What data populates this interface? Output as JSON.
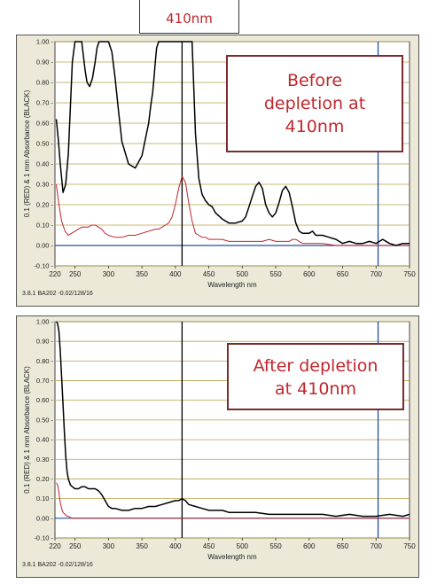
{
  "header_label": "410nm",
  "chart_data": [
    {
      "type": "line",
      "callout_lines": [
        "Before",
        "depletion at",
        "410nm"
      ],
      "ylabel": "0.1 (RED) & 1 mm Absorbance (BLACK)",
      "xlabel": "Wavelength nm",
      "footer": "3.8.1 BA202 -0.02/128/16",
      "xlim": [
        220,
        750
      ],
      "ylim": [
        -0.1,
        1.0
      ],
      "x_ticks": [
        220,
        250,
        300,
        350,
        400,
        450,
        500,
        550,
        600,
        650,
        700,
        750
      ],
      "y_ticks": [
        -0.1,
        0.0,
        0.1,
        0.2,
        0.3,
        0.4,
        0.5,
        0.6,
        0.7,
        0.8,
        0.9,
        1.0
      ],
      "y_tick_labels": [
        "-0.10 -",
        "0.00 -",
        "0.10 -",
        "0.20 -",
        "0.30 -",
        "0.40 -",
        "0.50 -",
        "0.60 -",
        "0.70 -",
        "0.80 -",
        "0.90 -",
        "1.00 -"
      ],
      "vertical_markers": [
        {
          "x": 410,
          "color": "#000000"
        },
        {
          "x": 703,
          "color": "#1f4fa0"
        }
      ],
      "grid": true,
      "series": [
        {
          "color": "#000000",
          "x": [
            222,
            225,
            228,
            232,
            236,
            240,
            243,
            246,
            250,
            255,
            260,
            265,
            268,
            272,
            276,
            280,
            283,
            286,
            290,
            295,
            300,
            305,
            310,
            315,
            320,
            330,
            340,
            350,
            355,
            360,
            363,
            366,
            368,
            370,
            372,
            375,
            380,
            385,
            390,
            395,
            400,
            405,
            410,
            415,
            420,
            425,
            430,
            435,
            440,
            445,
            450,
            455,
            460,
            470,
            480,
            490,
            500,
            505,
            510,
            515,
            520,
            525,
            530,
            535,
            540,
            545,
            550,
            555,
            560,
            565,
            570,
            575,
            580,
            585,
            590,
            595,
            600,
            605,
            610,
            620,
            630,
            640,
            650,
            660,
            670,
            680,
            690,
            700,
            710,
            720,
            730,
            740,
            750
          ],
          "y": [
            0.62,
            0.52,
            0.4,
            0.26,
            0.3,
            0.45,
            0.68,
            0.9,
            1.0,
            1.0,
            1.0,
            0.86,
            0.8,
            0.78,
            0.82,
            0.9,
            0.97,
            1.0,
            1.0,
            1.0,
            1.0,
            0.95,
            0.82,
            0.66,
            0.51,
            0.4,
            0.38,
            0.44,
            0.52,
            0.6,
            0.68,
            0.75,
            0.82,
            0.9,
            0.97,
            1.0,
            1.0,
            1.0,
            1.0,
            1.0,
            1.0,
            1.0,
            1.0,
            1.0,
            1.0,
            1.0,
            0.55,
            0.33,
            0.25,
            0.22,
            0.2,
            0.19,
            0.16,
            0.13,
            0.11,
            0.11,
            0.12,
            0.14,
            0.19,
            0.24,
            0.29,
            0.31,
            0.28,
            0.2,
            0.16,
            0.14,
            0.16,
            0.21,
            0.27,
            0.29,
            0.26,
            0.19,
            0.11,
            0.07,
            0.06,
            0.06,
            0.06,
            0.07,
            0.05,
            0.05,
            0.04,
            0.03,
            0.01,
            0.02,
            0.01,
            0.01,
            0.02,
            0.01,
            0.03,
            0.01,
            0.0,
            0.01,
            0.01
          ]
        },
        {
          "color": "#c0262c",
          "x": [
            222,
            226,
            230,
            235,
            240,
            245,
            250,
            255,
            260,
            265,
            270,
            275,
            280,
            285,
            290,
            295,
            300,
            310,
            320,
            330,
            340,
            350,
            360,
            370,
            375,
            380,
            385,
            390,
            395,
            400,
            405,
            410,
            415,
            420,
            425,
            430,
            435,
            440,
            445,
            450,
            460,
            470,
            480,
            490,
            500,
            510,
            520,
            530,
            540,
            550,
            560,
            570,
            575,
            580,
            585,
            590,
            600,
            620,
            640,
            660,
            680,
            700,
            720,
            740,
            750
          ],
          "y": [
            0.3,
            0.2,
            0.12,
            0.07,
            0.05,
            0.06,
            0.07,
            0.08,
            0.09,
            0.09,
            0.09,
            0.1,
            0.1,
            0.09,
            0.08,
            0.06,
            0.05,
            0.04,
            0.04,
            0.05,
            0.05,
            0.06,
            0.07,
            0.08,
            0.08,
            0.09,
            0.1,
            0.11,
            0.14,
            0.2,
            0.28,
            0.34,
            0.31,
            0.21,
            0.12,
            0.06,
            0.05,
            0.04,
            0.04,
            0.03,
            0.03,
            0.03,
            0.02,
            0.02,
            0.02,
            0.02,
            0.02,
            0.02,
            0.03,
            0.02,
            0.02,
            0.02,
            0.03,
            0.03,
            0.02,
            0.01,
            0.01,
            0.01,
            0.0,
            0.0,
            0.0,
            0.0,
            0.0,
            0.0,
            0.0
          ]
        }
      ]
    },
    {
      "type": "line",
      "callout_lines": [
        "After depletion",
        "at 410nm"
      ],
      "ylabel": "0.1 (RED) & 1 mm Absorbance (BLACK)",
      "xlabel": "Wavelength nm",
      "footer": "3.8.1 BA202 -0.02/128/16",
      "xlim": [
        220,
        750
      ],
      "ylim": [
        -0.1,
        1.0
      ],
      "x_ticks": [
        220,
        250,
        300,
        350,
        400,
        450,
        500,
        550,
        600,
        650,
        700,
        750
      ],
      "y_ticks": [
        -0.1,
        0.0,
        0.1,
        0.2,
        0.3,
        0.4,
        0.5,
        0.6,
        0.7,
        0.8,
        0.9,
        1.0
      ],
      "y_tick_labels": [
        "-0.10 -",
        "0.00 -",
        "0.10 -",
        "0.20 -",
        "0.30 -",
        "0.40 -",
        "0.50 -",
        "0.60 -",
        "0.70 -",
        "0.80 -",
        "0.90 -",
        "1.00 -"
      ],
      "vertical_markers": [
        {
          "x": 410,
          "color": "#000000"
        },
        {
          "x": 703,
          "color": "#1f4fa0"
        }
      ],
      "grid": true,
      "series": [
        {
          "color": "#000000",
          "x": [
            222,
            224,
            226,
            228,
            230,
            232,
            234,
            236,
            238,
            240,
            243,
            246,
            250,
            255,
            260,
            265,
            270,
            275,
            280,
            285,
            290,
            295,
            300,
            305,
            310,
            320,
            330,
            340,
            350,
            360,
            370,
            380,
            390,
            400,
            405,
            410,
            415,
            420,
            430,
            440,
            450,
            460,
            470,
            480,
            490,
            500,
            520,
            540,
            560,
            580,
            600,
            620,
            640,
            660,
            680,
            700,
            720,
            740,
            750
          ],
          "y": [
            1.0,
            0.99,
            0.95,
            0.85,
            0.72,
            0.58,
            0.44,
            0.32,
            0.24,
            0.2,
            0.17,
            0.16,
            0.15,
            0.15,
            0.16,
            0.16,
            0.15,
            0.15,
            0.15,
            0.14,
            0.12,
            0.09,
            0.06,
            0.05,
            0.05,
            0.04,
            0.04,
            0.05,
            0.05,
            0.06,
            0.06,
            0.07,
            0.08,
            0.09,
            0.09,
            0.1,
            0.09,
            0.07,
            0.06,
            0.05,
            0.04,
            0.04,
            0.04,
            0.03,
            0.03,
            0.03,
            0.03,
            0.02,
            0.02,
            0.02,
            0.02,
            0.02,
            0.01,
            0.02,
            0.01,
            0.01,
            0.02,
            0.01,
            0.02
          ]
        },
        {
          "color": "#c0262c",
          "x": [
            222,
            224,
            226,
            228,
            230,
            232,
            235,
            238,
            240,
            245,
            250,
            260,
            270,
            280,
            290,
            300,
            320,
            350,
            380,
            400,
            410,
            420,
            440,
            480,
            520,
            560,
            600,
            650,
            700,
            750
          ],
          "y": [
            0.18,
            0.17,
            0.13,
            0.08,
            0.05,
            0.03,
            0.02,
            0.01,
            0.01,
            0.0,
            0.0,
            0.0,
            0.0,
            0.0,
            0.0,
            0.0,
            0.0,
            0.0,
            0.0,
            0.0,
            0.0,
            0.0,
            0.0,
            0.0,
            0.0,
            0.0,
            0.0,
            0.0,
            0.0,
            0.0
          ]
        }
      ]
    }
  ]
}
